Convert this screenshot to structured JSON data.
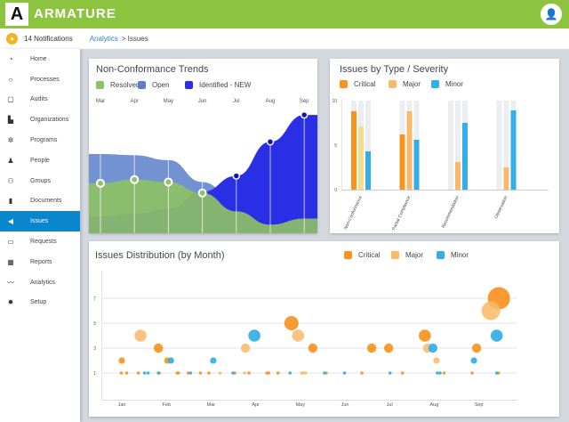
{
  "app": {
    "brand": "ARMATURE",
    "logo_letter": "A",
    "user_icon": "user-dropdown-icon"
  },
  "subheader": {
    "notifications": "14 Notifications",
    "breadcrumb": [
      {
        "label": "Analytics"
      },
      {
        "label": "> Issues"
      }
    ]
  },
  "sidebar": {
    "items": [
      {
        "label": "Home",
        "icon": "◔"
      },
      {
        "label": "Processes",
        "icon": "○"
      },
      {
        "label": "Audits",
        "icon": "▢"
      },
      {
        "label": "Organizations",
        "icon": "▙"
      },
      {
        "label": "Programs",
        "icon": "✲"
      },
      {
        "label": "People",
        "icon": "♟"
      },
      {
        "label": "Groups",
        "icon": "⚇"
      },
      {
        "label": "Documents",
        "icon": "▮"
      },
      {
        "label": "Issues",
        "icon": "◀",
        "active": true
      },
      {
        "label": "Requests",
        "icon": "▭"
      },
      {
        "label": "Reports",
        "icon": "▦"
      },
      {
        "label": "Analytics",
        "icon": "〰"
      },
      {
        "label": "Setup",
        "icon": "✹"
      }
    ]
  },
  "colors": {
    "resolved": "#8fc264",
    "open": "#5b7fc9",
    "identified": "#2a2fe6",
    "critical": "#f7931e",
    "major": "#fbb868",
    "minor": "#33aee8",
    "highlight": "#f7dc8a"
  },
  "chart_data": [
    {
      "type": "area",
      "title": "Non-Conformance Trends",
      "categories": [
        "Mar",
        "Apr",
        "May",
        "Jun",
        "Jul",
        "Aug",
        "Sep"
      ],
      "legend_placement": "top-left",
      "series": [
        {
          "name": "Resolved",
          "values": [
            4.1,
            4.4,
            4.2,
            3.3,
            1.8,
            0.7,
            1.2
          ]
        },
        {
          "name": "Open",
          "values": [
            6.5,
            6.4,
            6.0,
            4.2,
            2.6,
            2.6,
            2.8
          ]
        },
        {
          "name": "Identified - NEW",
          "values": [
            1.4,
            1.6,
            2.0,
            3.4,
            4.7,
            7.5,
            9.7
          ]
        }
      ]
    },
    {
      "type": "bar",
      "title": "Issues by Type / Severity",
      "categories": [
        "Non-Conformance",
        "Partial Compliance",
        "Recommendation",
        "Observation"
      ],
      "ylim": [
        0,
        10
      ],
      "yticks": [
        "0",
        "5",
        "10"
      ],
      "legend_placement": "top-left",
      "series": [
        {
          "name": "Critical",
          "values": [
            8.8,
            6.2,
            0,
            0
          ]
        },
        {
          "name": "Major",
          "values": [
            7.1,
            8.8,
            3.1,
            2.5
          ]
        },
        {
          "name": "Minor",
          "values": [
            4.3,
            5.6,
            7.5,
            8.9
          ]
        }
      ],
      "highlighted": {
        "series": "Major",
        "category": "Non-Conformance"
      }
    },
    {
      "type": "scatter",
      "title": "Issues Distribution (by Month)",
      "xticks": [
        "Jan",
        "Feb",
        "Mar",
        "Apr",
        "May",
        "Jun",
        "Jul",
        "Aug",
        "Sep"
      ],
      "yticks": [
        "1",
        "3",
        "5",
        "7"
      ],
      "ylim": [
        0,
        9
      ],
      "xlim": [
        0.55,
        9.85
      ],
      "legend_placement": "top-right",
      "grid": true,
      "series": [
        {
          "name": "Critical",
          "points": [
            [
              1.0,
              2
            ],
            [
              1.82,
              3
            ],
            [
              2.02,
              2
            ],
            [
              4.8,
              5
            ],
            [
              5.28,
              3
            ],
            [
              6.6,
              3
            ],
            [
              6.98,
              3
            ],
            [
              7.79,
              4
            ],
            [
              8.95,
              3
            ],
            [
              9.45,
              7
            ],
            [
              0.99,
              1
            ],
            [
              1.11,
              1
            ],
            [
              1.37,
              1
            ],
            [
              1.84,
              1
            ],
            [
              2.24,
              1
            ],
            [
              2.27,
              1
            ],
            [
              2.49,
              1
            ],
            [
              2.76,
              1
            ],
            [
              2.95,
              1
            ],
            [
              3.53,
              1
            ],
            [
              3.85,
              1
            ],
            [
              4.25,
              1
            ],
            [
              4.29,
              1
            ],
            [
              4.5,
              1
            ],
            [
              5.58,
              1
            ],
            [
              6.38,
              1
            ],
            [
              7.29,
              1
            ],
            [
              8.22,
              1
            ],
            [
              8.85,
              1
            ],
            [
              9.44,
              1
            ]
          ]
        },
        {
          "name": "Major",
          "points": [
            [
              1.42,
              4
            ],
            [
              3.77,
              3
            ],
            [
              4.95,
              4
            ],
            [
              7.85,
              3
            ],
            [
              8.05,
              2
            ],
            [
              9.27,
              6
            ],
            [
              3.2,
              1
            ],
            [
              3.75,
              1
            ],
            [
              5.03,
              1
            ],
            [
              5.07,
              1
            ],
            [
              5.12,
              1
            ]
          ]
        },
        {
          "name": "Minor",
          "points": [
            [
              2.1,
              2
            ],
            [
              3.05,
              2
            ],
            [
              3.97,
              4
            ],
            [
              7.97,
              3
            ],
            [
              8.89,
              2
            ],
            [
              9.4,
              4
            ],
            [
              1.51,
              1
            ],
            [
              1.59,
              1
            ],
            [
              1.82,
              1
            ],
            [
              2.54,
              1
            ],
            [
              3.49,
              1
            ],
            [
              4.77,
              1
            ],
            [
              5.54,
              1
            ],
            [
              5.99,
              1
            ],
            [
              7.01,
              1
            ],
            [
              8.07,
              1
            ],
            [
              8.13,
              1
            ],
            [
              9.4,
              1
            ]
          ]
        }
      ]
    }
  ]
}
